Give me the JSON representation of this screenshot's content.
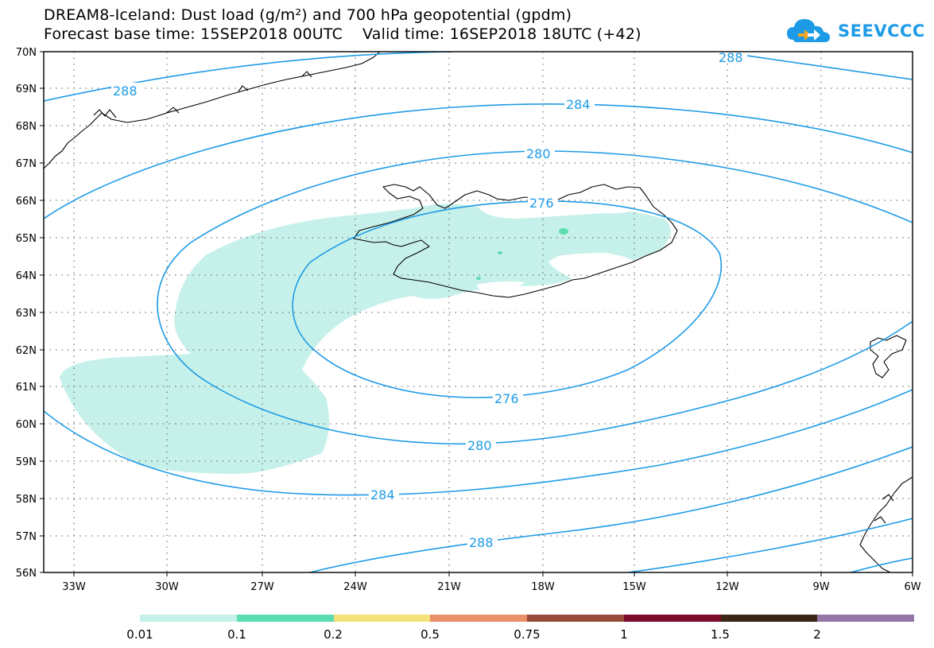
{
  "title": {
    "line1": "DREAM8-Iceland: Dust load (g/m²) and 700 hPa geopotential (gpdm)",
    "line2": "Forecast base time: 15SEP2018 00UTC    Valid time: 16SEP2018 18UTC (+42)"
  },
  "logo": {
    "text": "SEEVCCC",
    "icon": "cloud-icon",
    "color": "#1e9be6"
  },
  "map": {
    "lat_labels": [
      "70N",
      "69N",
      "68N",
      "67N",
      "66N",
      "65N",
      "64N",
      "63N",
      "62N",
      "61N",
      "60N",
      "59N",
      "58N",
      "57N",
      "56N"
    ],
    "lon_labels": [
      "33W",
      "30W",
      "27W",
      "24W",
      "21W",
      "18W",
      "15W",
      "12W",
      "9W",
      "6W"
    ],
    "contour_labels": {
      "c288_top_left": "288",
      "c288_top_right": "288",
      "c284_top": "284",
      "c280_top": "280",
      "c276_top": "276",
      "c276_bottom": "276",
      "c280_bottom": "280",
      "c284_bottom": "284",
      "c288_bottom": "288"
    },
    "contour_color": "#1e9be6",
    "dust_fill_color": "#c6f1ea",
    "dust_mid_color": "#5cdcb0"
  },
  "colorbar": {
    "colors": [
      "#c6f1ea",
      "#5cdcb0",
      "#f6e27a",
      "#e8906a",
      "#9a4c3c",
      "#7c0a2a",
      "#3a2614",
      "#9276a8"
    ],
    "labels": [
      "0.01",
      "0.1",
      "0.2",
      "0.5",
      "0.75",
      "1",
      "1.5",
      "2"
    ]
  }
}
